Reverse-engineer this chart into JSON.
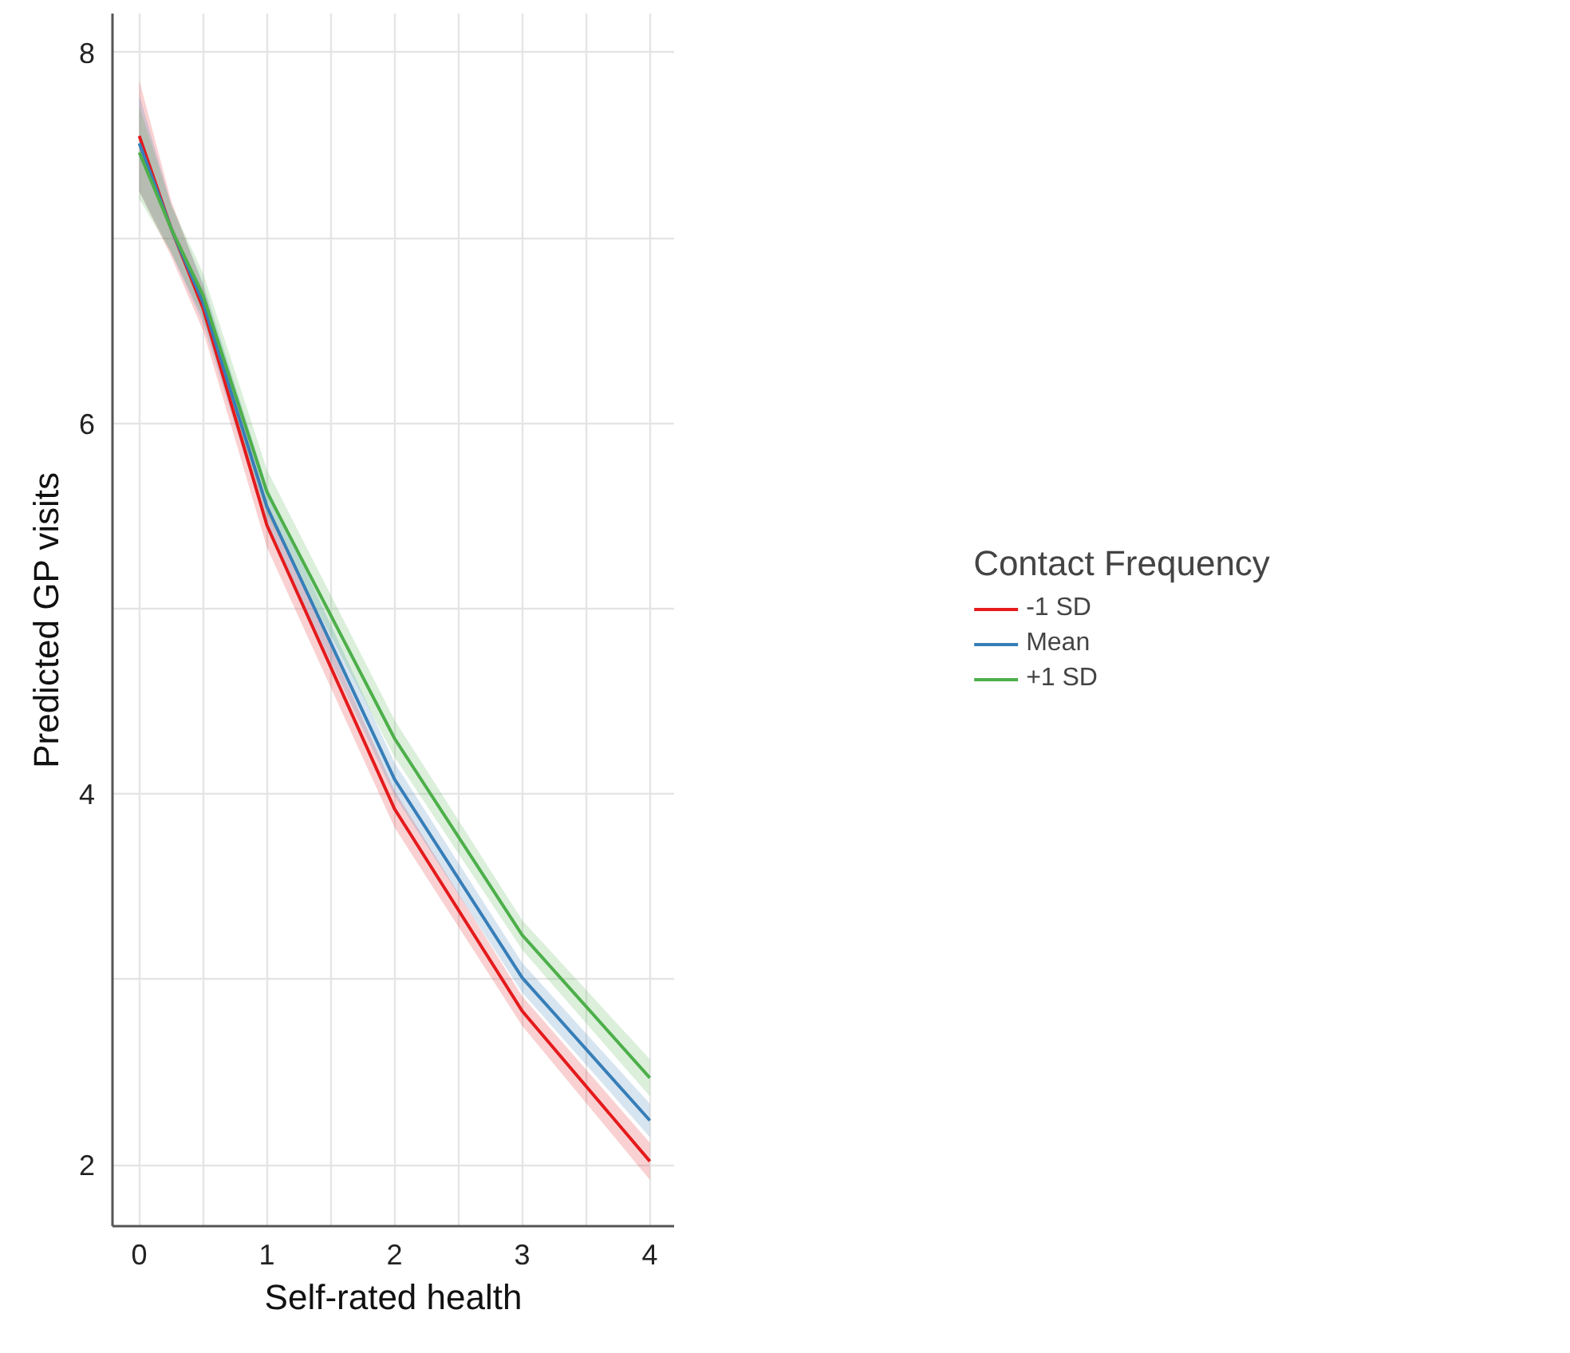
{
  "chart_data": {
    "type": "line",
    "xlabel": "Self-rated health",
    "ylabel": "Predicted GP visits",
    "legend_title": "Contact Frequency",
    "legend": "right",
    "grid": true,
    "xlim": [
      -0.21,
      4.19
    ],
    "ylim": [
      1.67,
      8.21
    ],
    "xticks": [
      0,
      {
        "value": 0.5,
        "label": null
      },
      1,
      {
        "value": 1.5,
        "label": null
      },
      2,
      {
        "value": 2.5,
        "label": null
      },
      3,
      {
        "value": 3.5,
        "label": null
      },
      4
    ],
    "yticks": [
      2,
      {
        "value": 3,
        "label": null
      },
      4,
      {
        "value": 5,
        "label": null
      },
      6,
      {
        "value": 7,
        "label": null
      },
      8
    ],
    "x": [
      0,
      0.25,
      0.5,
      1,
      2,
      3,
      4
    ],
    "series": [
      {
        "name": "-1 SD",
        "color": "#e41a1c",
        "values": [
          7.55,
          7.05,
          6.62,
          5.45,
          3.92,
          2.83,
          2.02
        ],
        "lower": [
          7.25,
          6.9,
          6.5,
          5.33,
          3.82,
          2.75,
          1.92
        ],
        "upper": [
          7.85,
          7.2,
          6.74,
          5.57,
          4.02,
          2.91,
          2.12
        ]
      },
      {
        "name": "Mean",
        "color": "#377eb8",
        "values": [
          7.51,
          7.05,
          6.65,
          5.55,
          4.08,
          3.01,
          2.24
        ],
        "lower": [
          7.25,
          6.92,
          6.54,
          5.44,
          3.99,
          2.93,
          2.15
        ],
        "upper": [
          7.77,
          7.18,
          6.76,
          5.66,
          4.17,
          3.09,
          2.33
        ]
      },
      {
        "name": "+1 SD",
        "color": "#4daf4a",
        "values": [
          7.46,
          7.05,
          6.69,
          5.63,
          4.3,
          3.24,
          2.47
        ],
        "lower": [
          7.21,
          6.92,
          6.57,
          5.51,
          4.2,
          3.16,
          2.37
        ],
        "upper": [
          7.71,
          7.18,
          6.81,
          5.75,
          4.4,
          3.32,
          2.57
        ]
      }
    ]
  }
}
